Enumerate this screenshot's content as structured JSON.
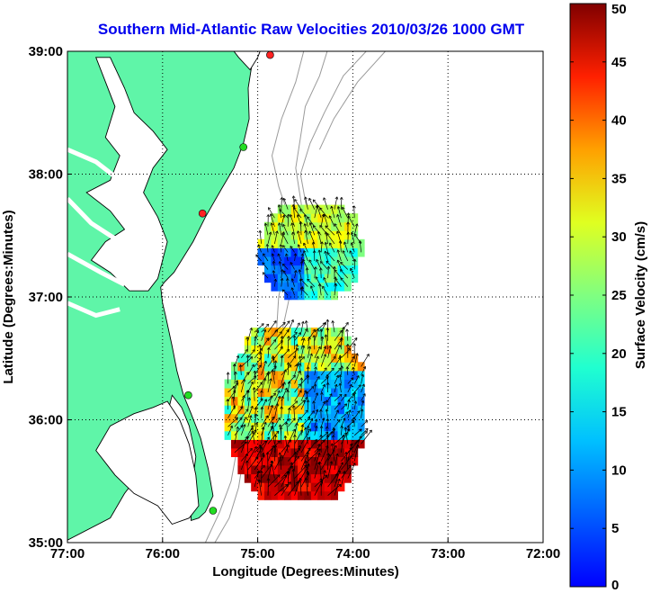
{
  "title": "Southern Mid-Atlantic Raw Velocities 2010/03/26 1000 GMT",
  "map": {
    "xlabel": "Longitude (Degrees:Minutes)",
    "ylabel": "Latitude (Degrees:Minutes)",
    "lon_range": [
      -77,
      -72
    ],
    "lat_range": [
      35,
      39
    ],
    "x_ticks": [
      {
        "lon": -77,
        "label": "77:00"
      },
      {
        "lon": -76,
        "label": "76:00"
      },
      {
        "lon": -75,
        "label": "75:00"
      },
      {
        "lon": -74,
        "label": "74:00"
      },
      {
        "lon": -73,
        "label": "73:00"
      },
      {
        "lon": -72,
        "label": "72:00"
      }
    ],
    "y_ticks": [
      {
        "lat": 35,
        "label": "35:00"
      },
      {
        "lat": 36,
        "label": "36:00"
      },
      {
        "lat": 37,
        "label": "37:00"
      },
      {
        "lat": 38,
        "label": "38:00"
      },
      {
        "lat": 39,
        "label": "39:00"
      }
    ],
    "grid": true,
    "colors": {
      "land": "#5ff5a8",
      "coastline": "#000000",
      "bathymetry": "#9a9a9a",
      "grid": "#000000",
      "arrow": "#000000"
    },
    "stations": [
      {
        "lon": -74.87,
        "lat": 38.97,
        "color": "#ff2222"
      },
      {
        "lon": -75.15,
        "lat": 38.22,
        "color": "#22dd22"
      },
      {
        "lon": -75.58,
        "lat": 37.68,
        "color": "#ff2222"
      },
      {
        "lon": -75.73,
        "lat": 36.2,
        "color": "#22dd22"
      },
      {
        "lon": -75.47,
        "lat": 35.26,
        "color": "#22dd22"
      }
    ]
  },
  "colorbar": {
    "label": "Surface Velocity (cm/s)",
    "min": 0,
    "max": 50,
    "ticks": [
      {
        "value": 0,
        "label": "0"
      },
      {
        "value": 5,
        "label": "5"
      },
      {
        "value": 10,
        "label": "10"
      },
      {
        "value": 15,
        "label": "15"
      },
      {
        "value": 20,
        "label": "20"
      },
      {
        "value": 25,
        "label": "25"
      },
      {
        "value": 30,
        "label": "30"
      },
      {
        "value": 35,
        "label": "35"
      },
      {
        "value": 40,
        "label": "40"
      },
      {
        "value": 45,
        "label": "45"
      },
      {
        "value": 50,
        "label": "50"
      }
    ],
    "colormap": "jet"
  },
  "velocity_fields": [
    {
      "name": "north",
      "lon_range": [
        -75.0,
        -73.95
      ],
      "lat_range": [
        36.98,
        37.72
      ],
      "speed_low": 8,
      "speed_high": 30,
      "direction_deg": 345
    },
    {
      "name": "south",
      "lon_range": [
        -75.35,
        -73.9
      ],
      "lat_range": [
        35.35,
        36.72
      ],
      "speed_low": 10,
      "speed_high": 50,
      "direction_deg": 20
    }
  ]
}
